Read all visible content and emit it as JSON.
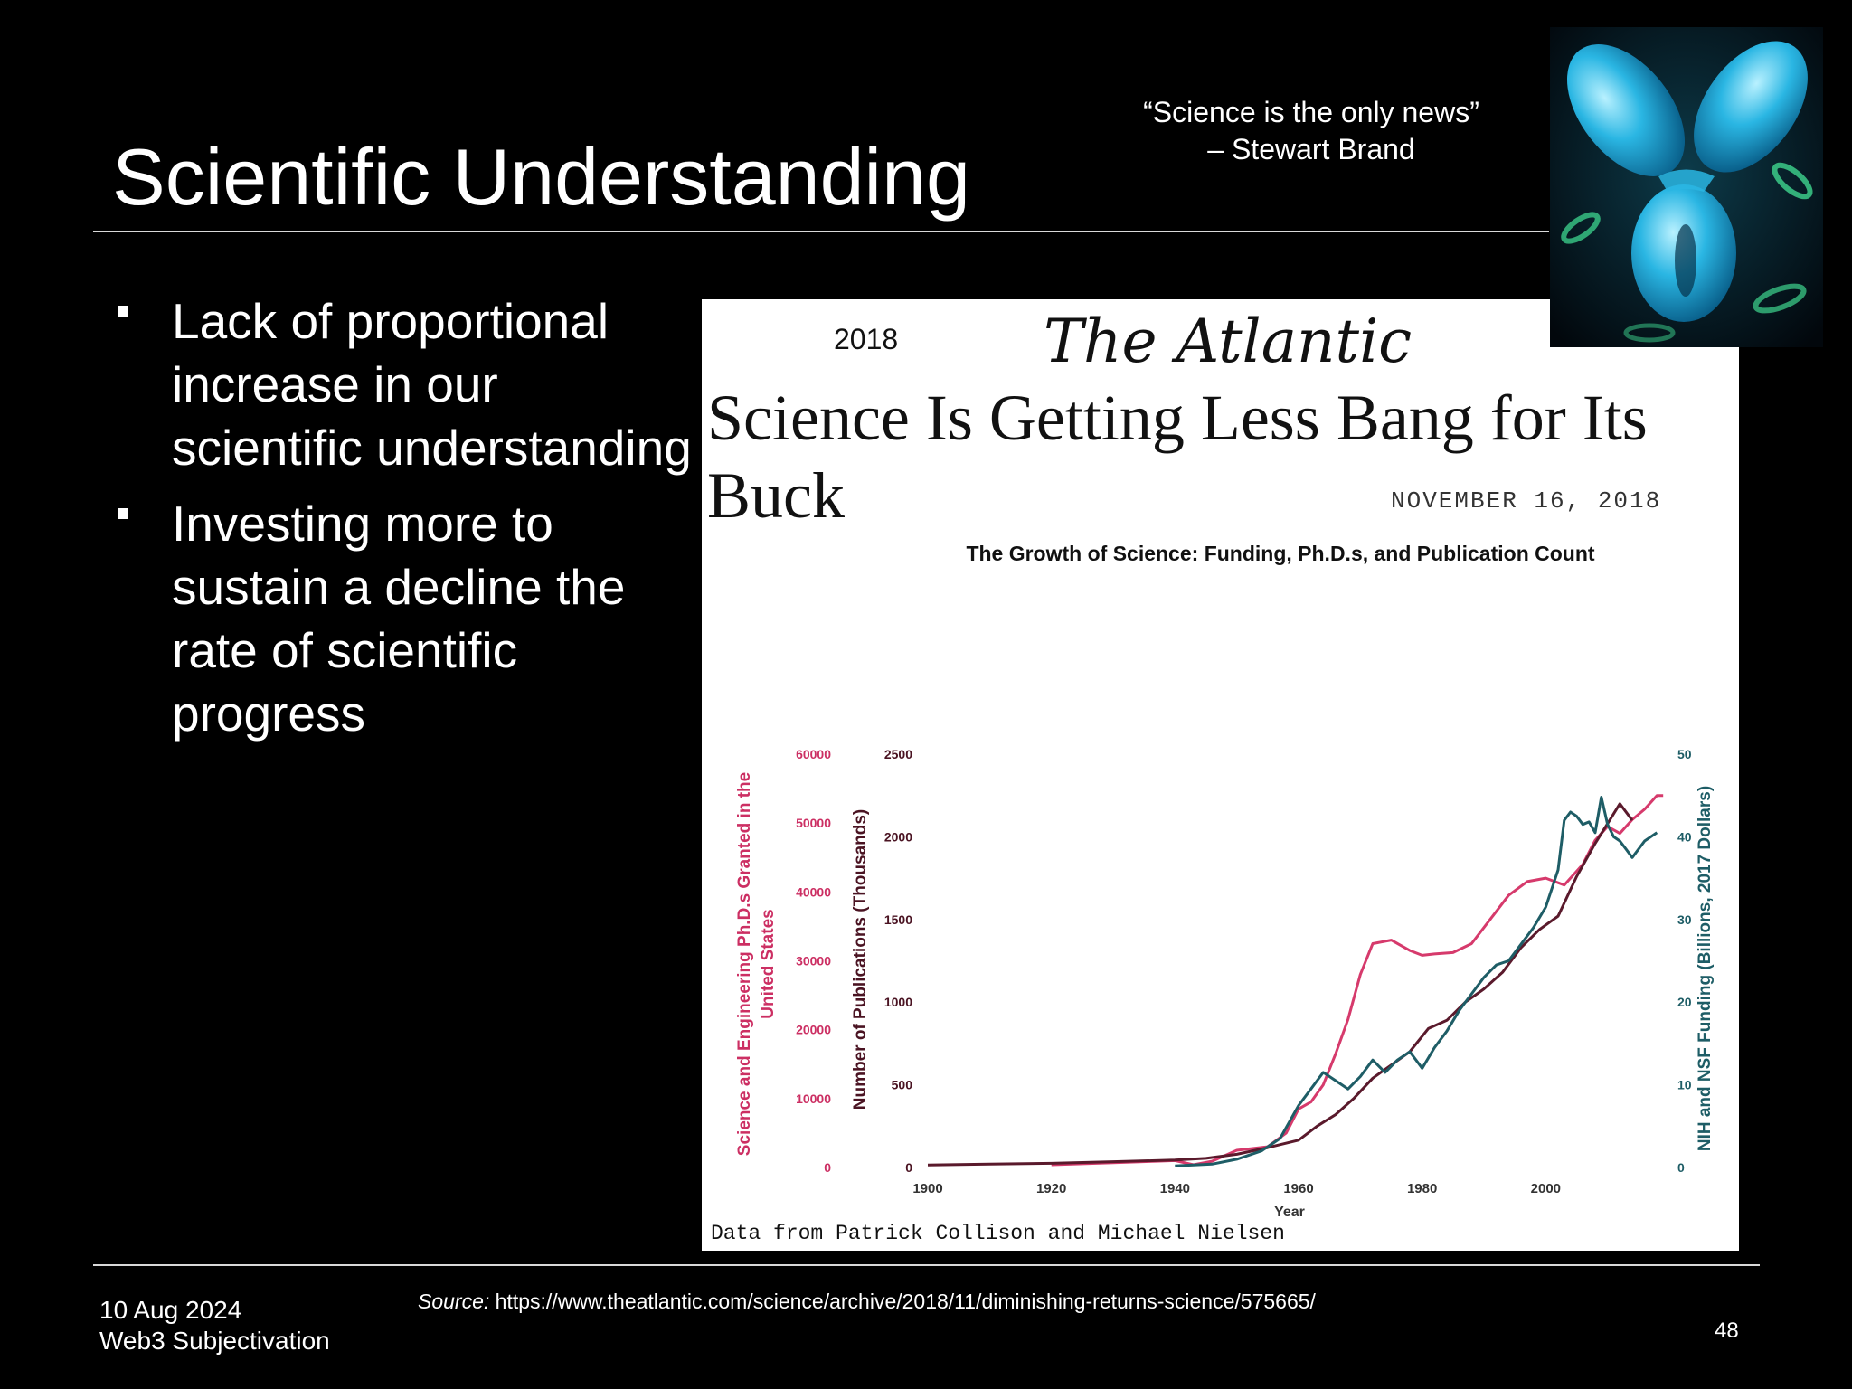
{
  "slide": {
    "title": "Scientific Understanding",
    "quote_line1": "“Science is the only news”",
    "quote_line2": "– Stewart Brand",
    "bullets": [
      "Lack of proportional increase in our scientific understanding",
      "Investing more to sustain a decline the rate of scientific progress"
    ]
  },
  "article": {
    "year_label": "2018",
    "magazine": "The Atlantic",
    "headline": "Science Is Getting Less Bang for Its Buck",
    "date": "NOVEMBER 16, 2018",
    "credit": "Data from Patrick Collison and Michael Nielsen"
  },
  "chart_data": {
    "type": "line",
    "title": "The Growth of Science: Funding, Ph.D.s, and Publication Count",
    "xlabel": "Year",
    "xlim": [
      1900,
      2020
    ],
    "x_ticks": [
      "1900",
      "1920",
      "1940",
      "1960",
      "1980",
      "2000"
    ],
    "axes": [
      {
        "id": "phd",
        "label": "Science and Engineering Ph.D.s Granted in the United States",
        "color": "#cc2f63",
        "lim": [
          0,
          60000
        ],
        "ticks": [
          "0",
          "10000",
          "20000",
          "30000",
          "40000",
          "50000",
          "60000"
        ]
      },
      {
        "id": "pubs",
        "label": "Number of Publications (Thousands)",
        "color": "#4a1322",
        "lim": [
          0,
          2500
        ],
        "ticks": [
          "0",
          "500",
          "1000",
          "1500",
          "2000",
          "2500"
        ]
      },
      {
        "id": "funding",
        "label": "NIH and NSF Funding (Billions, 2017 Dollars)",
        "color": "#1e5d66",
        "lim": [
          0,
          50
        ],
        "ticks": [
          "0",
          "10",
          "20",
          "30",
          "40",
          "50"
        ]
      }
    ],
    "series": [
      {
        "axis": "phd",
        "color": "#d63a6c",
        "points": [
          [
            1920,
            400
          ],
          [
            1930,
            700
          ],
          [
            1937,
            900
          ],
          [
            1940,
            1000
          ],
          [
            1943,
            400
          ],
          [
            1946,
            900
          ],
          [
            1950,
            2500
          ],
          [
            1955,
            3000
          ],
          [
            1958,
            5000
          ],
          [
            1960,
            8500
          ],
          [
            1962,
            9500
          ],
          [
            1964,
            12000
          ],
          [
            1966,
            16500
          ],
          [
            1968,
            21500
          ],
          [
            1970,
            28000
          ],
          [
            1972,
            32500
          ],
          [
            1975,
            33000
          ],
          [
            1978,
            31500
          ],
          [
            1980,
            30800
          ],
          [
            1982,
            31000
          ],
          [
            1985,
            31200
          ],
          [
            1988,
            32500
          ],
          [
            1991,
            36000
          ],
          [
            1994,
            39500
          ],
          [
            1997,
            41500
          ],
          [
            2000,
            42000
          ],
          [
            2003,
            41000
          ],
          [
            2006,
            44000
          ],
          [
            2008,
            47500
          ],
          [
            2010,
            49500
          ],
          [
            2012,
            48500
          ],
          [
            2014,
            50500
          ],
          [
            2016,
            52000
          ],
          [
            2018,
            54000
          ],
          [
            2019,
            54000
          ]
        ]
      },
      {
        "axis": "pubs",
        "color": "#5a1a2c",
        "points": [
          [
            1900,
            15
          ],
          [
            1910,
            20
          ],
          [
            1920,
            25
          ],
          [
            1930,
            35
          ],
          [
            1940,
            45
          ],
          [
            1945,
            55
          ],
          [
            1950,
            80
          ],
          [
            1955,
            120
          ],
          [
            1960,
            165
          ],
          [
            1963,
            250
          ],
          [
            1966,
            320
          ],
          [
            1969,
            420
          ],
          [
            1972,
            540
          ],
          [
            1975,
            620
          ],
          [
            1978,
            700
          ],
          [
            1981,
            840
          ],
          [
            1984,
            890
          ],
          [
            1987,
            1000
          ],
          [
            1990,
            1080
          ],
          [
            1993,
            1180
          ],
          [
            1996,
            1330
          ],
          [
            1999,
            1440
          ],
          [
            2002,
            1520
          ],
          [
            2005,
            1760
          ],
          [
            2008,
            1960
          ],
          [
            2010,
            2080
          ],
          [
            2012,
            2200
          ],
          [
            2014,
            2100
          ]
        ]
      },
      {
        "axis": "funding",
        "color": "#1e5d66",
        "points": [
          [
            1940,
            0.2
          ],
          [
            1946,
            0.4
          ],
          [
            1950,
            1.0
          ],
          [
            1954,
            2.0
          ],
          [
            1957,
            3.5
          ],
          [
            1960,
            7.5
          ],
          [
            1962,
            9.5
          ],
          [
            1964,
            11.5
          ],
          [
            1966,
            10.5
          ],
          [
            1968,
            9.5
          ],
          [
            1970,
            11.0
          ],
          [
            1972,
            13.0
          ],
          [
            1974,
            11.5
          ],
          [
            1976,
            13.0
          ],
          [
            1978,
            14.0
          ],
          [
            1980,
            12.0
          ],
          [
            1982,
            14.5
          ],
          [
            1984,
            16.5
          ],
          [
            1986,
            19.0
          ],
          [
            1988,
            21.0
          ],
          [
            1990,
            23.0
          ],
          [
            1992,
            24.5
          ],
          [
            1994,
            25.0
          ],
          [
            1996,
            27.0
          ],
          [
            1998,
            29.0
          ],
          [
            2000,
            31.5
          ],
          [
            2002,
            36.0
          ],
          [
            2003,
            42.0
          ],
          [
            2004,
            43.0
          ],
          [
            2005,
            42.5
          ],
          [
            2006,
            41.5
          ],
          [
            2007,
            41.8
          ],
          [
            2008,
            40.5
          ],
          [
            2009,
            44.8
          ],
          [
            2010,
            41.5
          ],
          [
            2011,
            40.0
          ],
          [
            2012,
            39.5
          ],
          [
            2013,
            38.5
          ],
          [
            2014,
            37.5
          ],
          [
            2016,
            39.5
          ],
          [
            2018,
            40.5
          ]
        ]
      }
    ]
  },
  "footer": {
    "date": "10 Aug 2024",
    "name": "Web3 Subjectivation",
    "source_label": "Source:",
    "source_url": "https://www.theatlantic.com/science/archive/2018/11/diminishing-returns-science/575665/",
    "page_number": "48"
  },
  "image": {
    "icon": "antibody-protein-icon"
  }
}
